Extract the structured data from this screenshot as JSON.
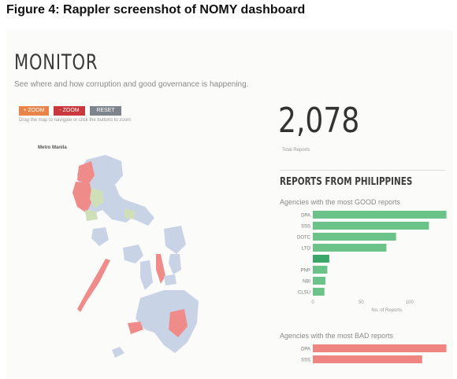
{
  "figure_caption": "Figure 4: Rappler screenshot of NOMY dashboard",
  "page": {
    "title": "MONITOR",
    "tagline": "See where and how corruption and good governance is happening.",
    "buttons": [
      {
        "label": "+ ZOOM IN",
        "color": "#e8844a"
      },
      {
        "label": "- ZOOM OUT",
        "color": "#c9383c"
      },
      {
        "label": "RESET ZOOM",
        "color": "#7f858c"
      }
    ],
    "map_hint": "Drag the map to navigate or click the buttons to zoom",
    "map_label": "Metro Manila"
  },
  "stats": {
    "total": "2,078",
    "total_label": "Total Reports"
  },
  "section_title": "REPORTS FROM PHILIPPINES",
  "good_chart": {
    "subtitle": "Agencies with the most GOOD reports",
    "color": "#6cc38a",
    "highlight_color": "#3aa669",
    "xlabel": "No. of Reports",
    "ticks": [
      0,
      50,
      100
    ],
    "xmax": 140,
    "bars": [
      {
        "label": "DPA",
        "value": 138
      },
      {
        "label": "SSS",
        "value": 120
      },
      {
        "label": "DOTC",
        "value": 86
      },
      {
        "label": "LTO",
        "value": 76
      },
      {
        "label": "",
        "value": 17
      },
      {
        "label": "PNP",
        "value": 15
      },
      {
        "label": "NBI",
        "value": 13
      },
      {
        "label": "CLSU",
        "value": 12
      }
    ]
  },
  "bad_chart": {
    "subtitle": "Agencies with the most BAD reports",
    "color": "#ee8580",
    "xmax": 140,
    "bars": [
      {
        "label": "DPA",
        "value": 138
      },
      {
        "label": "SSS",
        "value": 113
      }
    ]
  }
}
